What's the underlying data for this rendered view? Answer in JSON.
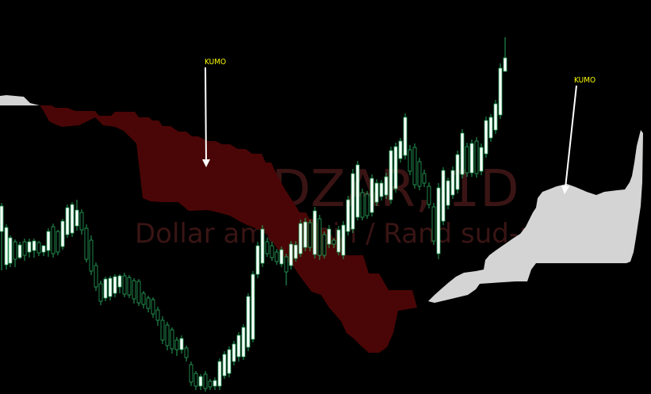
{
  "chart_data": {
    "type": "candlestick",
    "watermark": {
      "symbol": "USDZAR, 1D",
      "description": "Dollar américain / Rand sud-africain"
    },
    "annotations": [
      {
        "text": "KUMO",
        "target": "bearish-cloud"
      },
      {
        "text": "KUMO",
        "target": "bullish-cloud"
      }
    ],
    "colors": {
      "background": "#000000",
      "bull_candle": "#ffffff",
      "bear_candle": "#000000",
      "wick": "#26a65b",
      "bearish_cloud": "#4a0606",
      "bullish_cloud": "#d4d4d4",
      "annotation_text": "#ffff00",
      "arrow": "#ffffff",
      "watermark": "#3a1414"
    },
    "candles": [
      [
        2,
        256,
        341
      ],
      [
        8,
        283,
        340
      ],
      [
        13,
        297,
        337
      ],
      [
        19,
        302,
        337
      ],
      [
        25,
        305,
        327
      ],
      [
        31,
        301,
        329
      ],
      [
        37,
        301,
        325
      ],
      [
        43,
        301,
        325
      ],
      [
        49,
        304,
        323
      ],
      [
        55,
        309,
        323
      ],
      [
        61,
        288,
        324
      ],
      [
        67,
        282,
        325
      ],
      [
        73,
        290,
        322
      ],
      [
        79,
        276,
        315
      ],
      [
        85,
        258,
        300
      ],
      [
        91,
        255,
        299
      ],
      [
        97,
        252,
        291
      ],
      [
        103,
        264,
        296
      ],
      [
        109,
        283,
        331
      ],
      [
        115,
        297,
        347
      ],
      [
        121,
        331,
        367
      ],
      [
        127,
        354,
        385
      ],
      [
        133,
        349,
        380
      ],
      [
        139,
        348,
        379
      ],
      [
        145,
        346,
        375
      ],
      [
        151,
        346,
        370
      ],
      [
        157,
        344,
        375
      ],
      [
        163,
        347,
        376
      ],
      [
        169,
        351,
        383
      ],
      [
        175,
        352,
        386
      ],
      [
        181,
        367,
        389
      ],
      [
        187,
        373,
        394
      ],
      [
        193,
        375,
        401
      ],
      [
        199,
        387,
        411
      ],
      [
        205,
        399,
        434
      ],
      [
        211,
        406,
        442
      ],
      [
        217,
        413,
        446
      ],
      [
        223,
        425,
        449
      ],
      [
        229,
        423,
        446
      ],
      [
        235,
        436,
        456
      ],
      [
        241,
        456,
        487
      ],
      [
        247,
        468,
        492
      ],
      [
        253,
        472,
        492
      ],
      [
        259,
        468,
        494
      ],
      [
        265,
        478,
        492
      ],
      [
        271,
        476,
        492
      ],
      [
        277,
        452,
        492
      ],
      [
        283,
        443,
        478
      ],
      [
        289,
        437,
        476
      ],
      [
        295,
        430,
        461
      ],
      [
        301,
        419,
        456
      ],
      [
        307,
        409,
        454
      ],
      [
        313,
        370,
        443
      ],
      [
        319,
        342,
        432
      ],
      [
        325,
        305,
        351
      ],
      [
        331,
        284,
        337
      ],
      [
        337,
        300,
        324
      ],
      [
        343,
        305,
        329
      ],
      [
        349,
        314,
        334
      ],
      [
        355,
        311,
        337
      ],
      [
        361,
        320,
        360
      ],
      [
        367,
        304,
        340
      ],
      [
        373,
        304,
        330
      ],
      [
        379,
        277,
        324
      ],
      [
        385,
        275,
        317
      ],
      [
        391,
        277,
        317
      ],
      [
        397,
        261,
        326
      ],
      [
        403,
        271,
        328
      ],
      [
        409,
        292,
        326
      ],
      [
        415,
        284,
        313
      ],
      [
        421,
        300,
        313
      ],
      [
        427,
        285,
        322
      ],
      [
        433,
        279,
        327
      ],
      [
        439,
        247,
        297
      ],
      [
        445,
        213,
        294
      ],
      [
        451,
        203,
        278
      ],
      [
        457,
        238,
        278
      ],
      [
        463,
        241,
        276
      ],
      [
        469,
        220,
        273
      ],
      [
        475,
        226,
        260
      ],
      [
        481,
        227,
        253
      ],
      [
        487,
        218,
        251
      ],
      [
        493,
        185,
        257
      ],
      [
        499,
        180,
        243
      ],
      [
        505,
        174,
        205
      ],
      [
        511,
        143,
        201
      ],
      [
        517,
        183,
        221
      ],
      [
        523,
        181,
        238
      ],
      [
        529,
        199,
        240
      ],
      [
        535,
        214,
        236
      ],
      [
        541,
        230,
        263
      ],
      [
        547,
        256,
        309
      ],
      [
        553,
        231,
        327
      ],
      [
        559,
        211,
        284
      ],
      [
        565,
        224,
        264
      ],
      [
        571,
        210,
        251
      ],
      [
        577,
        190,
        244
      ],
      [
        583,
        163,
        225
      ],
      [
        589,
        180,
        223
      ],
      [
        595,
        176,
        223
      ],
      [
        601,
        173,
        224
      ],
      [
        607,
        181,
        221
      ],
      [
        613,
        147,
        199
      ],
      [
        619,
        144,
        179
      ],
      [
        625,
        126,
        169
      ],
      [
        631,
        80,
        150
      ],
      [
        637,
        47,
        90
      ]
    ],
    "bodies": [
      [
        2,
        260,
        292,
        1
      ],
      [
        8,
        287,
        334,
        1
      ],
      [
        13,
        300,
        332,
        1
      ],
      [
        19,
        305,
        327,
        0
      ],
      [
        25,
        309,
        325,
        1
      ],
      [
        31,
        305,
        322,
        0
      ],
      [
        37,
        305,
        318,
        1
      ],
      [
        43,
        304,
        316,
        1
      ],
      [
        49,
        306,
        319,
        0
      ],
      [
        55,
        310,
        318,
        1
      ],
      [
        61,
        292,
        316,
        1
      ],
      [
        67,
        286,
        320,
        0
      ],
      [
        73,
        292,
        318,
        0
      ],
      [
        79,
        279,
        311,
        1
      ],
      [
        85,
        262,
        296,
        1
      ],
      [
        91,
        258,
        294,
        1
      ],
      [
        97,
        265,
        285,
        1
      ],
      [
        103,
        268,
        290,
        0
      ],
      [
        109,
        288,
        327,
        0
      ],
      [
        115,
        303,
        342,
        0
      ],
      [
        121,
        335,
        362,
        0
      ],
      [
        127,
        358,
        380,
        0
      ],
      [
        133,
        352,
        376,
        1
      ],
      [
        139,
        351,
        374,
        1
      ],
      [
        145,
        349,
        370,
        1
      ],
      [
        151,
        348,
        362,
        1
      ],
      [
        157,
        348,
        371,
        0
      ],
      [
        163,
        350,
        372,
        0
      ],
      [
        169,
        354,
        377,
        0
      ],
      [
        175,
        355,
        382,
        0
      ],
      [
        181,
        370,
        384,
        0
      ],
      [
        187,
        376,
        389,
        0
      ],
      [
        193,
        378,
        396,
        0
      ],
      [
        199,
        391,
        404,
        0
      ],
      [
        205,
        404,
        429,
        0
      ],
      [
        211,
        410,
        436,
        0
      ],
      [
        217,
        416,
        440,
        0
      ],
      [
        223,
        429,
        441,
        0
      ],
      [
        229,
        427,
        441,
        1
      ],
      [
        235,
        439,
        451,
        0
      ],
      [
        241,
        460,
        482,
        0
      ],
      [
        247,
        471,
        487,
        0
      ],
      [
        253,
        475,
        487,
        1
      ],
      [
        259,
        472,
        490,
        0
      ],
      [
        265,
        481,
        488,
        0
      ],
      [
        271,
        480,
        487,
        1
      ],
      [
        277,
        456,
        487,
        1
      ],
      [
        283,
        447,
        474,
        1
      ],
      [
        289,
        441,
        471,
        1
      ],
      [
        295,
        434,
        456,
        1
      ],
      [
        301,
        423,
        450,
        1
      ],
      [
        307,
        413,
        450,
        1
      ],
      [
        313,
        374,
        438,
        1
      ],
      [
        319,
        346,
        428,
        1
      ],
      [
        325,
        310,
        346,
        1
      ],
      [
        331,
        289,
        332,
        1
      ],
      [
        337,
        305,
        320,
        0
      ],
      [
        343,
        310,
        325,
        0
      ],
      [
        349,
        318,
        330,
        0
      ],
      [
        355,
        315,
        333,
        1
      ],
      [
        361,
        324,
        343,
        0
      ],
      [
        367,
        308,
        335,
        1
      ],
      [
        373,
        309,
        326,
        1
      ],
      [
        379,
        282,
        320,
        1
      ],
      [
        385,
        280,
        312,
        1
      ],
      [
        391,
        281,
        312,
        0
      ],
      [
        397,
        266,
        321,
        1
      ],
      [
        403,
        276,
        322,
        0
      ],
      [
        409,
        296,
        322,
        0
      ],
      [
        415,
        289,
        308,
        1
      ],
      [
        421,
        303,
        308,
        0
      ],
      [
        427,
        290,
        318,
        1
      ],
      [
        433,
        284,
        322,
        1
      ],
      [
        439,
        252,
        292,
        1
      ],
      [
        445,
        219,
        289,
        1
      ],
      [
        451,
        208,
        274,
        1
      ],
      [
        457,
        243,
        274,
        0
      ],
      [
        463,
        245,
        272,
        0
      ],
      [
        469,
        225,
        268,
        1
      ],
      [
        475,
        231,
        255,
        1
      ],
      [
        481,
        231,
        248,
        1
      ],
      [
        487,
        223,
        246,
        1
      ],
      [
        493,
        190,
        252,
        1
      ],
      [
        499,
        185,
        238,
        1
      ],
      [
        505,
        178,
        200,
        1
      ],
      [
        511,
        148,
        196,
        1
      ],
      [
        517,
        189,
        216,
        0
      ],
      [
        523,
        186,
        233,
        0
      ],
      [
        529,
        204,
        235,
        0
      ],
      [
        535,
        219,
        231,
        0
      ],
      [
        541,
        235,
        258,
        0
      ],
      [
        547,
        261,
        304,
        0
      ],
      [
        553,
        237,
        320,
        1
      ],
      [
        559,
        215,
        279,
        1
      ],
      [
        565,
        228,
        259,
        1
      ],
      [
        571,
        215,
        246,
        1
      ],
      [
        577,
        195,
        239,
        1
      ],
      [
        583,
        168,
        220,
        1
      ],
      [
        589,
        185,
        218,
        0
      ],
      [
        595,
        181,
        218,
        1
      ],
      [
        601,
        178,
        219,
        0
      ],
      [
        607,
        186,
        216,
        1
      ],
      [
        613,
        152,
        194,
        1
      ],
      [
        619,
        148,
        174,
        1
      ],
      [
        625,
        131,
        164,
        1
      ],
      [
        631,
        86,
        145,
        1
      ],
      [
        637,
        73,
        90,
        1
      ]
    ]
  }
}
